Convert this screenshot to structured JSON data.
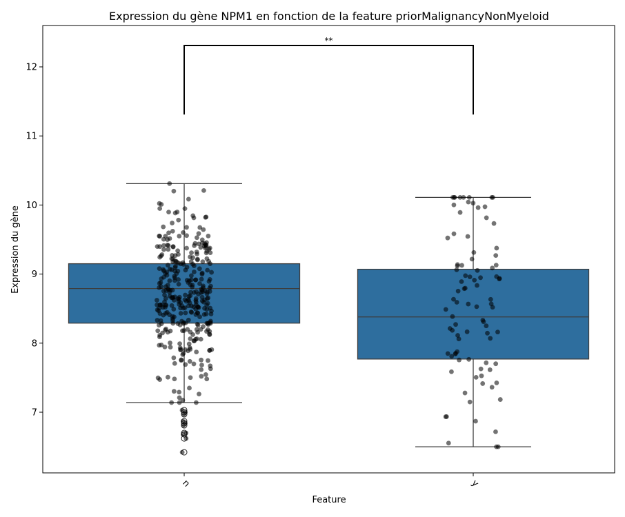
{
  "chart_data": {
    "type": "box",
    "title": "Expression du gène NPM1 en fonction de la feature priorMalignancyNonMyeloid",
    "xlabel": "Feature",
    "ylabel": "Expression du gène",
    "categories": [
      "n",
      "y"
    ],
    "ylim": [
      6.12,
      12.6
    ],
    "yticks": [
      7,
      8,
      9,
      10,
      11,
      12
    ],
    "grid": false,
    "box_color": "#2e6e9e",
    "point_color": "#000000",
    "boxes": [
      {
        "category": "n",
        "whisker_low": 7.14,
        "q1": 8.29,
        "median": 8.79,
        "q3": 9.15,
        "whisker_high": 10.31,
        "outliers": [
          7.03,
          7.0,
          6.97,
          6.87,
          6.84,
          6.81,
          6.7,
          6.68,
          6.62,
          6.42
        ],
        "n_points": 360
      },
      {
        "category": "y",
        "whisker_low": 6.5,
        "q1": 7.77,
        "median": 8.38,
        "q3": 9.07,
        "whisker_high": 10.11,
        "outliers": [],
        "n_points": 90
      }
    ],
    "significance": {
      "from": "n",
      "to": "y",
      "bar_y": 12.31,
      "leg_bottom": 11.31,
      "label": "**"
    }
  }
}
